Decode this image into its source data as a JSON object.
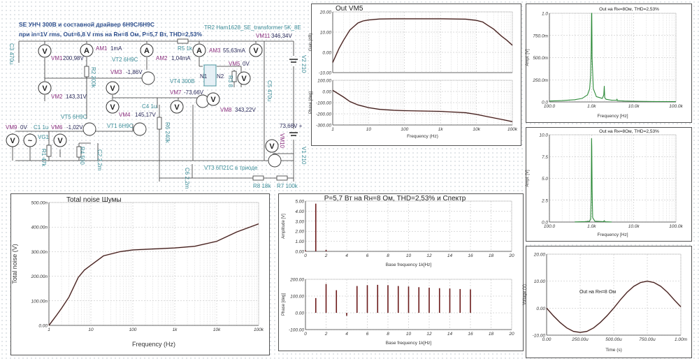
{
  "schematic": {
    "labels": [
      {
        "text": "SE УНЧ 300B и составной драйвер 6Н9С/6Н9С",
        "cls": "t1"
      },
      {
        "text": "при in=1V rms, Out=6,8 V rms на Rн=8 Ом, P=5,7 Вт, THD=2,53%",
        "cls": "t1"
      },
      {
        "text": "TR2 Ham1628_SE_transformer 5K_8E",
        "cls": "teal"
      },
      {
        "text": "VM11",
        "cls": "pur"
      },
      {
        "text": "346,34V",
        "cls": "val"
      },
      {
        "text": "C3 470u",
        "cls": "teal rot"
      },
      {
        "text": "VM1",
        "cls": "pur"
      },
      {
        "text": "200,98V",
        "cls": "val"
      },
      {
        "text": "AM1",
        "cls": "pur"
      },
      {
        "text": "1mA",
        "cls": "val"
      },
      {
        "text": "VT2 6Н9С",
        "cls": "teal"
      },
      {
        "text": "AM2",
        "cls": "pur"
      },
      {
        "text": "1,04mA",
        "cls": "val"
      },
      {
        "text": "R5 1k",
        "cls": "teal"
      },
      {
        "text": "AM3",
        "cls": "pur"
      },
      {
        "text": "55,63mA",
        "cls": "val"
      },
      {
        "text": "VM5",
        "cls": "pur"
      },
      {
        "text": "0V",
        "cls": "val"
      },
      {
        "text": "V2 210",
        "cls": "teal rot"
      },
      {
        "text": "R2 200k",
        "cls": "teal rot"
      },
      {
        "text": "VM3",
        "cls": "pur"
      },
      {
        "text": "-1,86V",
        "cls": "val"
      },
      {
        "text": "VT4 300B",
        "cls": "teal"
      },
      {
        "text": "N1",
        "cls": "val"
      },
      {
        "text": "N2",
        "cls": "val"
      },
      {
        "text": "R3 8",
        "cls": "teal rot"
      },
      {
        "text": "C5 470u",
        "cls": "teal rot"
      },
      {
        "text": "VM2",
        "cls": "pur"
      },
      {
        "text": "143,31V",
        "cls": "val"
      },
      {
        "text": "VM7",
        "cls": "pur"
      },
      {
        "text": "-73,66V",
        "cls": "val"
      },
      {
        "text": "C4 1u",
        "cls": "teal"
      },
      {
        "text": "VM8",
        "cls": "pur"
      },
      {
        "text": "343,22V",
        "cls": "val"
      },
      {
        "text": "VT5 6Н9С",
        "cls": "teal"
      },
      {
        "text": "VM4",
        "cls": "pur"
      },
      {
        "text": "145,17V",
        "cls": "val"
      },
      {
        "text": "R6 240k",
        "cls": "teal rot"
      },
      {
        "text": "VT1 6Н9С",
        "cls": "teal"
      },
      {
        "text": "VM9",
        "cls": "pur"
      },
      {
        "text": "0V",
        "cls": "val"
      },
      {
        "text": "C1 1u",
        "cls": "teal"
      },
      {
        "text": "VM6",
        "cls": "pur"
      },
      {
        "text": "-1,02V",
        "cls": "val"
      },
      {
        "text": "VG1",
        "cls": "teal"
      },
      {
        "text": "VM10",
        "cls": "pur rot"
      },
      {
        "text": "73,66V +",
        "cls": "val"
      },
      {
        "text": "V1 210",
        "cls": "teal rot"
      },
      {
        "text": "R1 47k",
        "cls": "teal rot"
      },
      {
        "text": "R4 500",
        "cls": "teal rot"
      },
      {
        "text": "C2 2,2m",
        "cls": "teal rot"
      },
      {
        "text": "VT3 6П21С в триоде",
        "cls": "teal"
      },
      {
        "text": "C6 2,2m",
        "cls": "teal rot"
      },
      {
        "text": "R8 18k",
        "cls": "teal"
      },
      {
        "text": "R7 100k",
        "cls": "teal"
      }
    ],
    "meters": [
      {
        "name": "VM1",
        "glyph": "V"
      },
      {
        "name": "AM1",
        "glyph": "A"
      },
      {
        "name": "AM2",
        "glyph": "A"
      },
      {
        "name": "AM3",
        "glyph": "A"
      },
      {
        "name": "VM11",
        "glyph": "V"
      },
      {
        "name": "VM5",
        "glyph": "V"
      },
      {
        "name": "VM3",
        "glyph": "V"
      },
      {
        "name": "VM4",
        "glyph": "V"
      },
      {
        "name": "VM2",
        "glyph": "V"
      },
      {
        "name": "VM7",
        "glyph": "V"
      },
      {
        "name": "VM8",
        "glyph": "V"
      },
      {
        "name": "VM9",
        "glyph": "V"
      },
      {
        "name": "VG1",
        "glyph": "~"
      },
      {
        "name": "VM6",
        "glyph": "V"
      },
      {
        "name": "VM10",
        "glyph": "V"
      }
    ]
  },
  "colors": {
    "trace": "#2a1a1a",
    "trace_edge": "#c0392b",
    "spectrum": "#2e8b3a",
    "grid": "#b8b8b8",
    "axis": "#444444",
    "schematic_wire": "#333333"
  },
  "chart_data": [
    {
      "type": "line",
      "title": "Out VM5",
      "xlabel": "",
      "ylabel": "Gain (dB)",
      "xscale": "log",
      "xlim": [
        1,
        100000
      ],
      "ylim": [
        -10,
        20
      ],
      "xticks": [
        1,
        10,
        100,
        1000,
        10000,
        100000
      ],
      "xtick_labels": [
        "",
        "",
        "",
        "",
        "",
        ""
      ],
      "yticks": [
        -10,
        0,
        10,
        20
      ],
      "ytick_labels": [
        "-10.00",
        "0.00",
        "10.00",
        "20.00"
      ],
      "grid": true,
      "x": [
        1,
        1.5,
        2,
        3,
        5,
        7,
        10,
        20,
        50,
        100,
        1000,
        5000,
        10000,
        15000,
        20000,
        30000,
        50000,
        70000,
        100000
      ],
      "y": [
        -5,
        2,
        6,
        11,
        14.5,
        15.5,
        16,
        16.5,
        16.6,
        16.6,
        16.6,
        16.4,
        15.8,
        15,
        13.5,
        11.5,
        8,
        6,
        3.5
      ]
    },
    {
      "type": "line",
      "title": "",
      "xlabel": "Frequency (Hz)",
      "ylabel": "Phase [deg]",
      "xscale": "log",
      "xlim": [
        1,
        100000
      ],
      "ylim": [
        -300,
        100
      ],
      "xticks": [
        1,
        10,
        100,
        1000,
        10000,
        100000
      ],
      "xtick_labels": [
        "1",
        "10",
        "100",
        "1k",
        "10k",
        "100k"
      ],
      "yticks": [
        -300,
        -200,
        -100,
        0,
        100
      ],
      "ytick_labels": [
        "-300.00",
        "-200.00",
        "-100.00",
        "0.00",
        "100.00"
      ],
      "grid": true,
      "x": [
        1,
        2,
        3,
        5,
        10,
        20,
        50,
        100,
        1000,
        5000,
        10000,
        20000,
        50000,
        100000
      ],
      "y": [
        10,
        -50,
        -90,
        -120,
        -145,
        -160,
        -168,
        -172,
        -178,
        -190,
        -205,
        -225,
        -250,
        -270
      ]
    },
    {
      "type": "line",
      "title": "Out на Rн=8Ом, THD=2,53%",
      "xlabel": "Frequency [Hz]",
      "ylabel": "Ampl. [V]",
      "xscale": "log",
      "xlim": [
        100,
        100000
      ],
      "ylim": [
        0,
        1
      ],
      "xticks": [
        100,
        1000,
        10000,
        100000
      ],
      "xtick_labels": [
        "100.0",
        "1.0k",
        "10.0k",
        "100.0k"
      ],
      "yticks": [
        0,
        0.25,
        0.5,
        0.75,
        1
      ],
      "ytick_labels": [
        "0.0",
        "250.0m",
        "500.0m",
        "750.0m",
        "1.0"
      ],
      "grid": true,
      "x": [
        100,
        200,
        400,
        600,
        800,
        900,
        950,
        980,
        1000,
        1010,
        1030,
        1100,
        1300,
        1800,
        1950,
        2000,
        2050,
        2200,
        3000,
        3900,
        4000,
        4100,
        6000,
        10000,
        30000,
        100000
      ],
      "y": [
        0.01,
        0.015,
        0.025,
        0.04,
        0.08,
        0.15,
        0.3,
        0.6,
        1.0,
        1.0,
        0.5,
        0.15,
        0.06,
        0.04,
        0.08,
        0.18,
        0.05,
        0.03,
        0.02,
        0.02,
        0.03,
        0.015,
        0.01,
        0.008,
        0.005,
        0.004
      ]
    },
    {
      "type": "line",
      "title": "Out на Rн=8Ом, THD=2,53%",
      "xlabel": "Frequency [Hz]",
      "ylabel": "Ampl. [V]",
      "xscale": "log",
      "xlim": [
        100,
        100000
      ],
      "ylim": [
        0,
        10
      ],
      "xticks": [
        100,
        1000,
        10000,
        100000
      ],
      "xtick_labels": [
        "100.0",
        "1.0k",
        "10.0k",
        "100.0k"
      ],
      "yticks": [
        0,
        2.5,
        5,
        7.5,
        10
      ],
      "ytick_labels": [
        "0.0",
        "2.5",
        "5.0",
        "7.5",
        "10.0"
      ],
      "grid": true,
      "x": [
        400,
        700,
        900,
        950,
        980,
        1000,
        1010,
        1030,
        1060,
        1200,
        1900,
        2000,
        2100,
        3000
      ],
      "y": [
        0.02,
        0.05,
        0.1,
        0.4,
        3,
        9.6,
        8.7,
        3.7,
        0.5,
        0.1,
        0.05,
        0.15,
        0.03,
        0.01
      ]
    },
    {
      "type": "line",
      "title": "",
      "annotation": "Out на Rн=8 Ом",
      "xlabel": "Time (s)",
      "ylabel": "Voltage (V)",
      "xscale": "linear",
      "xlim": [
        0,
        0.001
      ],
      "ylim": [
        -10,
        20
      ],
      "xticks": [
        0,
        0.00025,
        0.0005,
        0.00075,
        0.001
      ],
      "xtick_labels": [
        "0.00",
        "250.00u",
        "500.00u",
        "750.00u",
        "1.00m"
      ],
      "yticks": [
        -10,
        0,
        10,
        20
      ],
      "ytick_labels": [
        "-10.00",
        "0.00",
        "10.00",
        "20.00"
      ],
      "grid": true,
      "x": [
        0,
        5e-05,
        0.0001,
        0.00015,
        0.0002,
        0.00025,
        0.0003,
        0.00035,
        0.0004,
        0.00045,
        0.0005,
        0.00055,
        0.0006,
        0.00065,
        0.0007,
        0.00075,
        0.0008,
        0.00085,
        0.0009,
        0.00095,
        0.001
      ],
      "y": [
        0,
        -2.8,
        -5.3,
        -7.3,
        -8.6,
        -9,
        -8.6,
        -7.3,
        -5.3,
        -2.8,
        0,
        3.1,
        5.9,
        8.1,
        9.5,
        10,
        9.5,
        8.1,
        5.9,
        3.1,
        0.5
      ]
    },
    {
      "type": "line",
      "title": "Total noise Шумы",
      "xlabel": "Frequency (Hz)",
      "ylabel": "Total noise (V)",
      "xscale": "log",
      "xlim": [
        1,
        100000
      ],
      "ylim": [
        0,
        5e-07
      ],
      "xticks": [
        1,
        10,
        100,
        1000,
        10000,
        100000
      ],
      "xtick_labels": [
        "1",
        "10",
        "100",
        "1k",
        "10k",
        "100k"
      ],
      "yticks": [
        0,
        1e-07,
        2e-07,
        3e-07,
        4e-07,
        5e-07
      ],
      "ytick_labels": [
        "0.00",
        "100.00n",
        "200.00n",
        "300.00n",
        "400.00n",
        "500.00n"
      ],
      "grid": true,
      "x": [
        1,
        1.5,
        2,
        3,
        5,
        7,
        10,
        20,
        50,
        100,
        1000,
        3000,
        10000,
        30000,
        100000
      ],
      "y": [
        0,
        4e-08,
        7e-08,
        1.15e-07,
        1.95e-07,
        2.25e-07,
        2.45e-07,
        2.83e-07,
        3e-07,
        3.07e-07,
        3.15e-07,
        3.22e-07,
        3.42e-07,
        3.8e-07,
        4.13e-07
      ]
    },
    {
      "type": "bar",
      "title": "P=5,7 Вт на Rн=8 Ом, THD=2,53% и Спектр",
      "xlabel": "Base frequency 1k[Hz]",
      "ylabel": "Amplitude [V]",
      "xscale": "linear",
      "xlim": [
        0,
        20
      ],
      "ylim": [
        0,
        5
      ],
      "xticks": [
        0,
        2,
        4,
        6,
        8,
        10,
        12,
        14,
        16,
        18,
        20
      ],
      "xtick_labels": [
        "0",
        "2",
        "4",
        "6",
        "8",
        "10",
        "12",
        "14",
        "16",
        "18",
        "20"
      ],
      "yticks": [
        0,
        1,
        2,
        3,
        4,
        5
      ],
      "ytick_labels": [
        "0.00",
        "1.00",
        "2.00",
        "3.00",
        "4.00",
        "5.00"
      ],
      "grid": true,
      "x": [
        0,
        1,
        2
      ],
      "y": [
        0.1,
        4.75,
        0.15
      ]
    },
    {
      "type": "bar",
      "title": "",
      "xlabel": "Base frequency 1k[Hz]",
      "ylabel": "Phase [deg]",
      "xscale": "linear",
      "xlim": [
        0,
        20
      ],
      "ylim": [
        -100,
        200
      ],
      "xticks": [
        0,
        2,
        4,
        6,
        8,
        10,
        12,
        14,
        16,
        18,
        20
      ],
      "xtick_labels": [
        "0",
        "2",
        "4",
        "6",
        "8",
        "10",
        "12",
        "14",
        "16",
        "18",
        "20"
      ],
      "yticks": [
        -100,
        0,
        100,
        200
      ],
      "ytick_labels": [
        "-100.00",
        "0.00",
        "100.00",
        "200.00"
      ],
      "grid": true,
      "x": [
        1,
        2,
        3,
        4,
        5,
        6,
        7,
        8,
        9,
        10,
        11,
        12,
        13,
        14,
        15,
        16
      ],
      "y": [
        88,
        172,
        135,
        -18,
        160,
        165,
        167,
        165,
        160,
        157,
        153,
        150,
        147,
        145,
        142,
        140
      ]
    }
  ]
}
